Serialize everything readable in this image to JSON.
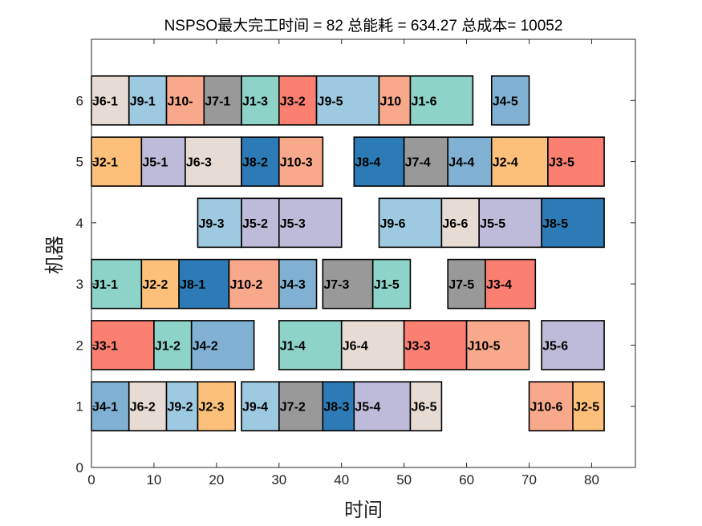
{
  "chart_data": {
    "type": "gantt",
    "title": "NSPSO最大完工时间 = 82 总能耗 = 634.27 总成本= 10052",
    "xlabel": "时间",
    "ylabel": "机器",
    "xlim": [
      0,
      87
    ],
    "ylim": [
      0,
      7
    ],
    "xticks": [
      "0",
      "10",
      "20",
      "30",
      "40",
      "50",
      "60",
      "70",
      "80"
    ],
    "yticks": [
      "0",
      "1",
      "2",
      "3",
      "4",
      "5",
      "6"
    ],
    "grid": false,
    "job_colors": {
      "J1": "#8dd3c7",
      "J2": "#fdc07a",
      "J3": "#fb8072",
      "J4": "#80b1d3",
      "J5": "#bebada",
      "J6": "#e7dcd3",
      "J7": "#999999",
      "J8": "#2c7bb6",
      "J9": "#9ecae1",
      "J10": "#f9a98b"
    },
    "operations": [
      {
        "machine": 6,
        "job": "J6",
        "label": "J6-1",
        "start": 0,
        "end": 6
      },
      {
        "machine": 6,
        "job": "J9",
        "label": "J9-1",
        "start": 6,
        "end": 12
      },
      {
        "machine": 6,
        "job": "J10",
        "label": "J10-",
        "start": 12,
        "end": 18
      },
      {
        "machine": 6,
        "job": "J7",
        "label": "J7-1",
        "start": 18,
        "end": 24
      },
      {
        "machine": 6,
        "job": "J1",
        "label": "J1-3",
        "start": 24,
        "end": 30
      },
      {
        "machine": 6,
        "job": "J3",
        "label": "J3-2",
        "start": 30,
        "end": 36
      },
      {
        "machine": 6,
        "job": "J9",
        "label": "J9-5",
        "start": 36,
        "end": 46
      },
      {
        "machine": 6,
        "job": "J10",
        "label": "J10",
        "start": 46,
        "end": 51
      },
      {
        "machine": 6,
        "job": "J1",
        "label": "J1-6",
        "start": 51,
        "end": 61
      },
      {
        "machine": 6,
        "job": "J4",
        "label": "J4-5",
        "start": 64,
        "end": 70
      },
      {
        "machine": 5,
        "job": "J2",
        "label": "J2-1",
        "start": 0,
        "end": 8
      },
      {
        "machine": 5,
        "job": "J5",
        "label": "J5-1",
        "start": 8,
        "end": 15
      },
      {
        "machine": 5,
        "job": "J6",
        "label": "J6-3",
        "start": 15,
        "end": 24
      },
      {
        "machine": 5,
        "job": "J8",
        "label": "J8-2",
        "start": 24,
        "end": 30
      },
      {
        "machine": 5,
        "job": "J10",
        "label": "J10-3",
        "start": 30,
        "end": 37
      },
      {
        "machine": 5,
        "job": "J8",
        "label": "J8-4",
        "start": 42,
        "end": 50
      },
      {
        "machine": 5,
        "job": "J7",
        "label": "J7-4",
        "start": 50,
        "end": 57
      },
      {
        "machine": 5,
        "job": "J4",
        "label": "J4-4",
        "start": 57,
        "end": 64
      },
      {
        "machine": 5,
        "job": "J2",
        "label": "J2-4",
        "start": 64,
        "end": 73
      },
      {
        "machine": 5,
        "job": "J3",
        "label": "J3-5",
        "start": 73,
        "end": 82
      },
      {
        "machine": 4,
        "job": "J9",
        "label": "J9-3",
        "start": 17,
        "end": 24
      },
      {
        "machine": 4,
        "job": "J5",
        "label": "J5-2",
        "start": 24,
        "end": 30
      },
      {
        "machine": 4,
        "job": "J5",
        "label": "J5-3",
        "start": 30,
        "end": 40
      },
      {
        "machine": 4,
        "job": "J9",
        "label": "J9-6",
        "start": 46,
        "end": 56
      },
      {
        "machine": 4,
        "job": "J6",
        "label": "J6-6",
        "start": 56,
        "end": 62
      },
      {
        "machine": 4,
        "job": "J5",
        "label": "J5-5",
        "start": 62,
        "end": 72
      },
      {
        "machine": 4,
        "job": "J8",
        "label": "J8-5",
        "start": 72,
        "end": 82
      },
      {
        "machine": 3,
        "job": "J1",
        "label": "J1-1",
        "start": 0,
        "end": 8
      },
      {
        "machine": 3,
        "job": "J2",
        "label": "J2-2",
        "start": 8,
        "end": 14
      },
      {
        "machine": 3,
        "job": "J8",
        "label": "J8-1",
        "start": 14,
        "end": 22
      },
      {
        "machine": 3,
        "job": "J10",
        "label": "J10-2",
        "start": 22,
        "end": 30
      },
      {
        "machine": 3,
        "job": "J4",
        "label": "J4-3",
        "start": 30,
        "end": 36
      },
      {
        "machine": 3,
        "job": "J7",
        "label": "J7-3",
        "start": 37,
        "end": 45
      },
      {
        "machine": 3,
        "job": "J1",
        "label": "J1-5",
        "start": 45,
        "end": 51
      },
      {
        "machine": 3,
        "job": "J7",
        "label": "J7-5",
        "start": 57,
        "end": 63
      },
      {
        "machine": 3,
        "job": "J3",
        "label": "J3-4",
        "start": 63,
        "end": 71
      },
      {
        "machine": 2,
        "job": "J3",
        "label": "J3-1",
        "start": 0,
        "end": 10
      },
      {
        "machine": 2,
        "job": "J1",
        "label": "J1-2",
        "start": 10,
        "end": 16
      },
      {
        "machine": 2,
        "job": "J4",
        "label": "J4-2",
        "start": 16,
        "end": 26
      },
      {
        "machine": 2,
        "job": "J1",
        "label": "J1-4",
        "start": 30,
        "end": 40
      },
      {
        "machine": 2,
        "job": "J6",
        "label": "J6-4",
        "start": 40,
        "end": 50
      },
      {
        "machine": 2,
        "job": "J3",
        "label": "J3-3",
        "start": 50,
        "end": 60
      },
      {
        "machine": 2,
        "job": "J10",
        "label": "J10-5",
        "start": 60,
        "end": 70
      },
      {
        "machine": 2,
        "job": "J5",
        "label": "J5-6",
        "start": 72,
        "end": 82
      },
      {
        "machine": 1,
        "job": "J4",
        "label": "J4-1",
        "start": 0,
        "end": 6
      },
      {
        "machine": 1,
        "job": "J6",
        "label": "J6-2",
        "start": 6,
        "end": 12
      },
      {
        "machine": 1,
        "job": "J9",
        "label": "J9-2",
        "start": 12,
        "end": 17
      },
      {
        "machine": 1,
        "job": "J2",
        "label": "J2-3",
        "start": 17,
        "end": 23
      },
      {
        "machine": 1,
        "job": "J9",
        "label": "J9-4",
        "start": 24,
        "end": 30
      },
      {
        "machine": 1,
        "job": "J7",
        "label": "J7-2",
        "start": 30,
        "end": 37
      },
      {
        "machine": 1,
        "job": "J8",
        "label": "J8-3",
        "start": 37,
        "end": 42
      },
      {
        "machine": 1,
        "job": "J5",
        "label": "J5-4",
        "start": 42,
        "end": 51
      },
      {
        "machine": 1,
        "job": "J6",
        "label": "J6-5",
        "start": 51,
        "end": 56
      },
      {
        "machine": 1,
        "job": "J10",
        "label": "J10-6",
        "start": 70,
        "end": 77
      },
      {
        "machine": 1,
        "job": "J2",
        "label": "J2-5",
        "start": 77,
        "end": 82
      }
    ]
  }
}
